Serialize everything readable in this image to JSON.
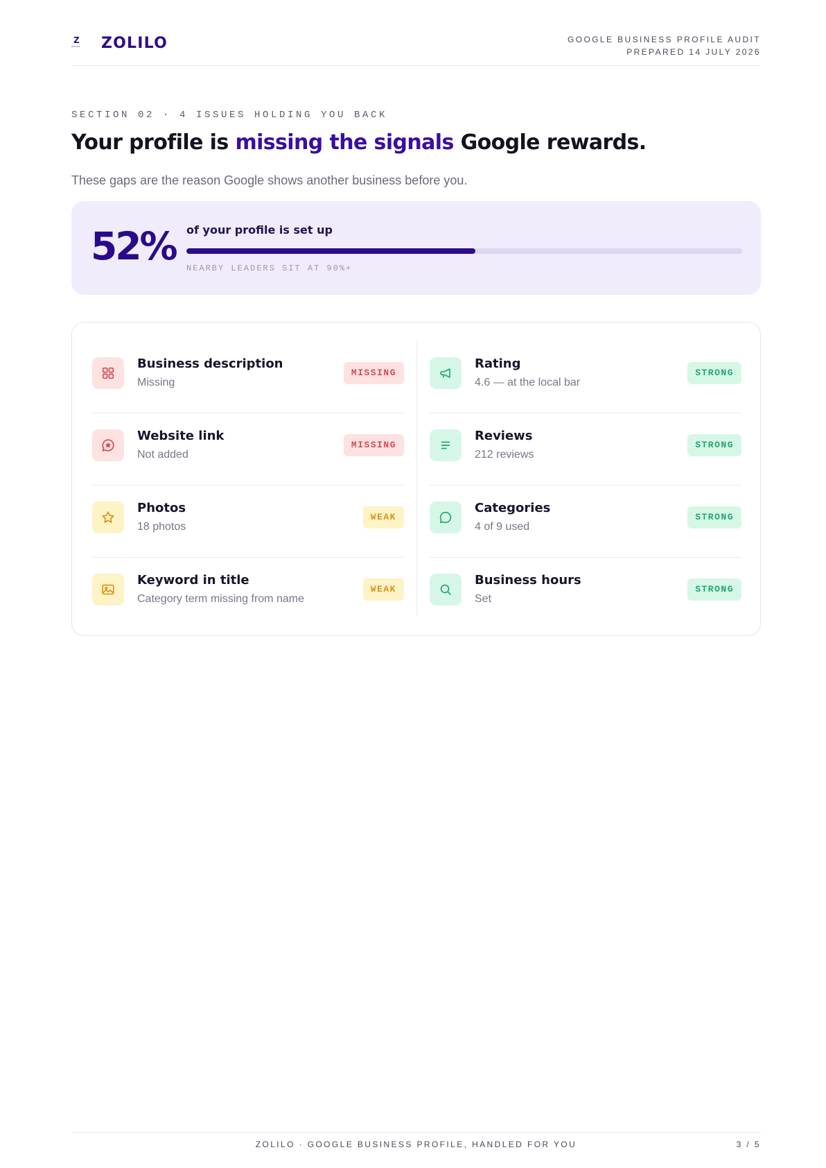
{
  "brand": {
    "mark_letter": "Z",
    "mark_caption": "ZOLILO",
    "name": "ZOLILO"
  },
  "header": {
    "report_title": "GOOGLE BUSINESS PROFILE AUDIT",
    "prepared": "PREPARED 14 JULY 2026"
  },
  "section": {
    "eyebrow": "SECTION 02 · 4 ISSUES HOLDING YOU BACK",
    "title_before": "Your profile is ",
    "title_accent": "missing the signals",
    "title_after": " Google rewards.",
    "subtitle": "These gaps are the reason Google shows another business before you."
  },
  "score": {
    "value": "52%",
    "fill_percent": 52,
    "label": "of your profile is set up",
    "note": "NEARBY LEADERS SIT AT 90%+"
  },
  "checks_left": [
    {
      "title": "Business description",
      "sub": "Missing",
      "badge": "MISSING",
      "icon": "grid-icon"
    },
    {
      "title": "Website link",
      "sub": "Not added",
      "badge": "MISSING",
      "icon": "chat-star-icon"
    },
    {
      "title": "Photos",
      "sub": "18 photos",
      "badge": "WEAK",
      "icon": "star-icon"
    },
    {
      "title": "Keyword in title",
      "sub": "Category term missing from name",
      "badge": "WEAK",
      "icon": "image-icon"
    }
  ],
  "checks_right": [
    {
      "title": "Rating",
      "sub": "4.6 — at the local bar",
      "badge": "STRONG",
      "icon": "megaphone-icon"
    },
    {
      "title": "Reviews",
      "sub": "212 reviews",
      "badge": "STRONG",
      "icon": "lines-icon"
    },
    {
      "title": "Categories",
      "sub": "4 of 9 used",
      "badge": "STRONG",
      "icon": "chat-bubble-icon"
    },
    {
      "title": "Business hours",
      "sub": "Set",
      "badge": "STRONG",
      "icon": "search-icon"
    }
  ],
  "colors": {
    "brand": "#2f0c8a",
    "missing": "#d24a54",
    "weak": "#d99413",
    "strong": "#1ea76e",
    "score_panel": "#f0ecfb"
  },
  "footer": {
    "tagline": "ZOLILO · GOOGLE BUSINESS PROFILE, HANDLED FOR YOU",
    "page": "3 / 5"
  }
}
